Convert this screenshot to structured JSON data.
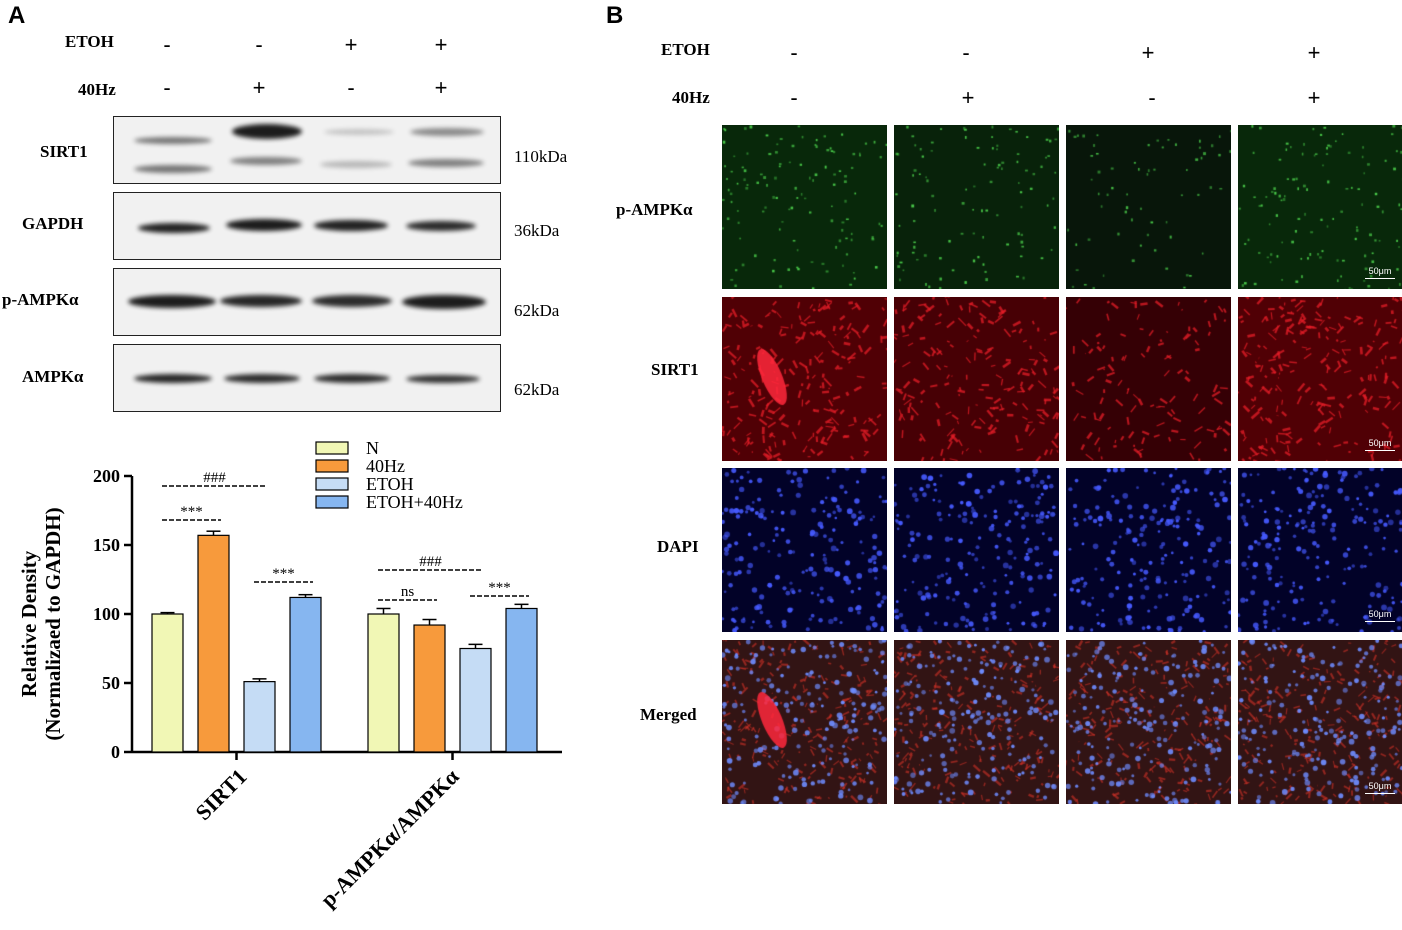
{
  "panel_a": {
    "letter": "A",
    "conditions": [
      {
        "label": "ETOH",
        "signs": [
          "-",
          "-",
          "+",
          "+"
        ]
      },
      {
        "label": "40Hz",
        "signs": [
          "-",
          "+",
          "-",
          "+"
        ]
      }
    ],
    "blot_rows": [
      {
        "label": "SIRT1",
        "kda": "110kDa"
      },
      {
        "label": "GAPDH",
        "kda": "36kDa"
      },
      {
        "label": "p-AMPKα",
        "kda": "62kDa"
      },
      {
        "label": "AMPKα",
        "kda": "62kDa"
      }
    ]
  },
  "panel_b": {
    "letter": "B",
    "conditions": [
      {
        "label": "ETOH",
        "signs": [
          "-",
          "-",
          "+",
          "+"
        ]
      },
      {
        "label": "40Hz",
        "signs": [
          "-",
          "+",
          "-",
          "+"
        ]
      }
    ],
    "rows": [
      {
        "label": "p-AMPKα",
        "color": "#1f9a2c"
      },
      {
        "label": "SIRT1",
        "color": "#d81a2a"
      },
      {
        "label": "DAPI",
        "color": "#3a3aff"
      },
      {
        "label": "Merged",
        "color": "#a83050"
      }
    ],
    "scale_label": "50μm"
  },
  "chart_data": {
    "type": "bar",
    "categories": [
      "SIRT1",
      "p-AMPKα/AMPKα"
    ],
    "series": [
      {
        "name": "N",
        "color": "#f1f7b5",
        "values": [
          100,
          100
        ],
        "errors": [
          1,
          4
        ]
      },
      {
        "name": "40Hz",
        "color": "#f79a3c",
        "values": [
          157,
          92
        ],
        "errors": [
          3,
          4
        ]
      },
      {
        "name": "ETOH",
        "color": "#c5dcf5",
        "values": [
          51,
          75
        ],
        "errors": [
          2,
          3
        ]
      },
      {
        "name": "ETOH+40Hz",
        "color": "#86b6f0",
        "values": [
          112,
          104
        ],
        "errors": [
          2,
          3
        ]
      }
    ],
    "ylabel_line1": "Relative Density",
    "ylabel_line2": "(Normalizaed to GAPDH)",
    "ylim": [
      0,
      200
    ],
    "yticks": [
      0,
      50,
      100,
      150,
      200
    ],
    "legend_position": "top-right",
    "annotations": [
      {
        "text": "###",
        "group": 0,
        "from": 0,
        "to": 2
      },
      {
        "text": "***",
        "group": 0,
        "from": 0,
        "to": 1
      },
      {
        "text": "***",
        "group": 0,
        "from": 2,
        "to": 3
      },
      {
        "text": "###",
        "group": 1,
        "from": 0,
        "to": 2
      },
      {
        "text": "ns",
        "group": 1,
        "from": 0,
        "to": 1
      },
      {
        "text": "***",
        "group": 1,
        "from": 2,
        "to": 3
      }
    ]
  }
}
